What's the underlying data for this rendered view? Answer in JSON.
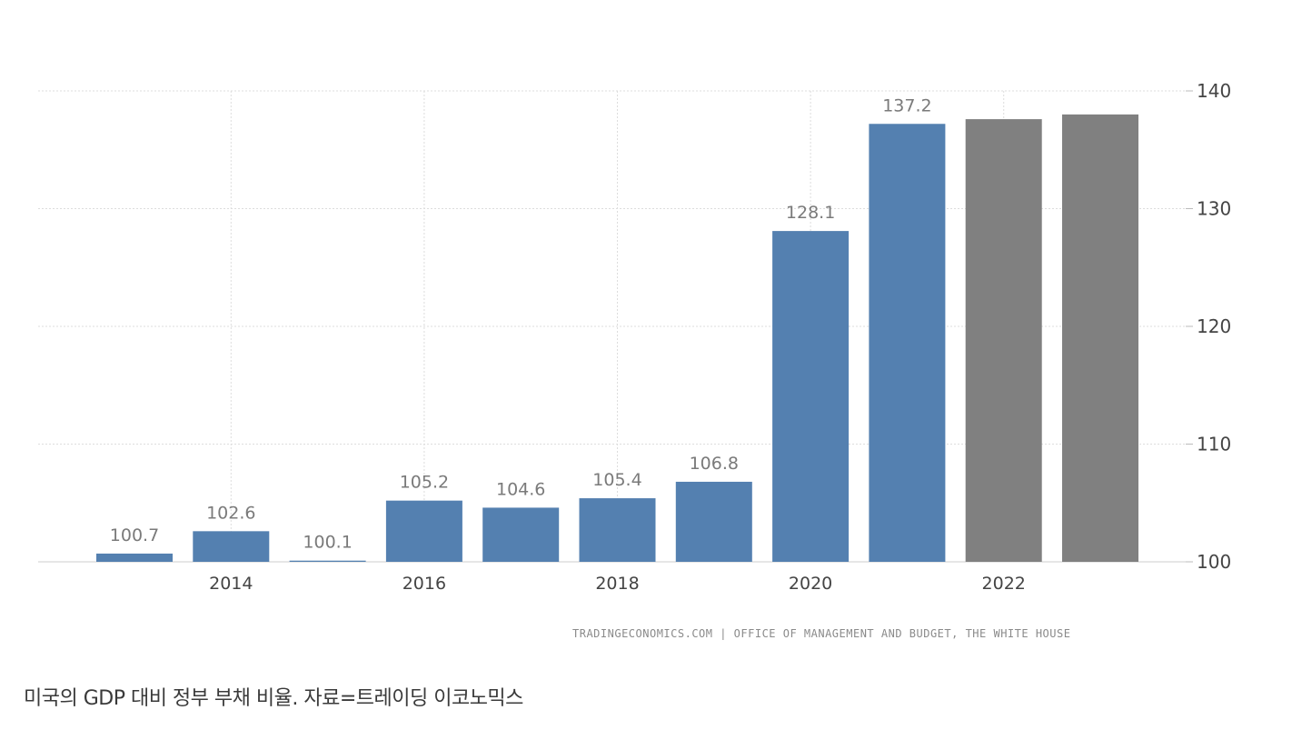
{
  "chart_data": {
    "type": "bar",
    "title": "",
    "xlabel": "",
    "ylabel": "",
    "ylim": [
      100,
      140
    ],
    "y_ticks": [
      "100",
      "110",
      "120",
      "130",
      "140"
    ],
    "y_axis_position": "right",
    "grid": true,
    "x_tick_labels": [
      "2014",
      "2016",
      "2018",
      "2020",
      "2022"
    ],
    "categories": [
      "2013",
      "2014",
      "2015",
      "2016",
      "2017",
      "2018",
      "2019",
      "2020",
      "2021",
      "2022",
      "2023"
    ],
    "values": [
      100.7,
      102.6,
      100.1,
      105.2,
      104.6,
      105.4,
      106.8,
      128.1,
      137.2,
      137.6,
      138.0
    ],
    "value_labels": [
      "100.7",
      "102.6",
      "100.1",
      "105.2",
      "104.6",
      "105.4",
      "106.8",
      "128.1",
      "137.2",
      "",
      ""
    ],
    "colors": {
      "actual": "#5480b0",
      "forecast": "#808080",
      "grid": "#dddddd",
      "axis": "#cccccc"
    },
    "bar_kind": [
      "actual",
      "actual",
      "actual",
      "actual",
      "actual",
      "actual",
      "actual",
      "actual",
      "actual",
      "forecast",
      "forecast"
    ]
  },
  "source_text": "TRADINGECONOMICS.COM | OFFICE OF MANAGEMENT AND BUDGET, THE WHITE HOUSE",
  "caption": "미국의 GDP 대비 정부 부채 비율. 자료=트레이딩 이코노믹스"
}
